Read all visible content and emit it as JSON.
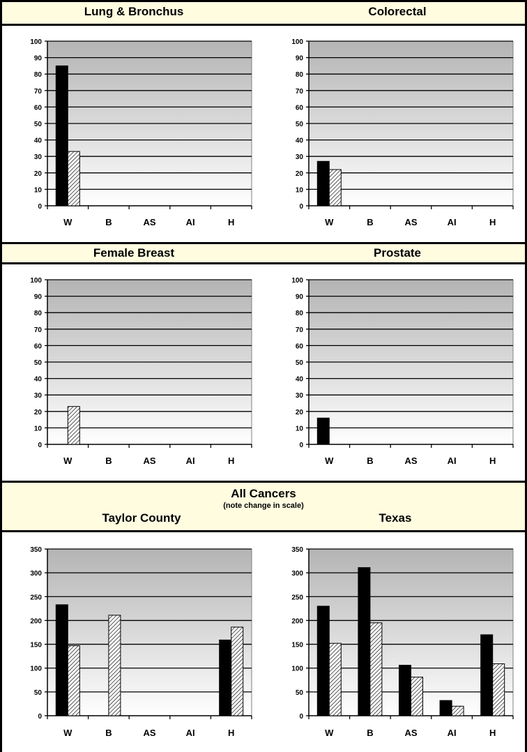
{
  "headers": {
    "row1_left": "Lung & Bronchus",
    "row1_right": "Colorectal",
    "row2_left": "Female Breast",
    "row2_right": "Prostate",
    "all_title": "All Cancers",
    "all_note": "(note change in scale)",
    "all_left": "Taylor County",
    "all_right": "Texas"
  },
  "colors": {
    "header_bg": "#fffce0",
    "series1": "#000000",
    "series2_hatch": "#ffffff",
    "plot_top": "#b4b4b4",
    "plot_bottom": "#ffffff"
  },
  "chart_data": [
    {
      "id": "lung",
      "type": "bar",
      "title": "Lung & Bronchus",
      "categories": [
        "W",
        "B",
        "AS",
        "AI",
        "H"
      ],
      "series": [
        {
          "values": [
            85,
            0,
            0,
            0,
            0
          ],
          "pattern": "solid"
        },
        {
          "values": [
            33,
            0,
            0,
            0,
            0
          ],
          "pattern": "hatch"
        }
      ],
      "ylim": [
        0,
        100
      ],
      "yticks": [
        0,
        10,
        20,
        30,
        40,
        50,
        60,
        70,
        80,
        90,
        100
      ],
      "grid": true
    },
    {
      "id": "colorectal",
      "type": "bar",
      "title": "Colorectal",
      "categories": [
        "W",
        "B",
        "AS",
        "AI",
        "H"
      ],
      "series": [
        {
          "values": [
            27,
            0,
            0,
            0,
            0
          ],
          "pattern": "solid"
        },
        {
          "values": [
            22,
            0,
            0,
            0,
            0
          ],
          "pattern": "hatch"
        }
      ],
      "ylim": [
        0,
        100
      ],
      "yticks": [
        0,
        10,
        20,
        30,
        40,
        50,
        60,
        70,
        80,
        90,
        100
      ],
      "grid": true
    },
    {
      "id": "breast",
      "type": "bar",
      "title": "Female Breast",
      "categories": [
        "W",
        "B",
        "AS",
        "AI",
        "H"
      ],
      "series": [
        {
          "values": [
            0,
            0,
            0,
            0,
            0
          ],
          "pattern": "solid"
        },
        {
          "values": [
            23,
            0,
            0,
            0,
            0
          ],
          "pattern": "hatch"
        }
      ],
      "ylim": [
        0,
        100
      ],
      "yticks": [
        0,
        10,
        20,
        30,
        40,
        50,
        60,
        70,
        80,
        90,
        100
      ],
      "grid": true
    },
    {
      "id": "prostate",
      "type": "bar",
      "title": "Prostate",
      "categories": [
        "W",
        "B",
        "AS",
        "AI",
        "H"
      ],
      "series": [
        {
          "values": [
            16,
            0,
            0,
            0,
            0
          ],
          "pattern": "solid"
        },
        {
          "values": [
            0,
            0,
            0,
            0,
            0
          ],
          "pattern": "hatch"
        }
      ],
      "ylim": [
        0,
        100
      ],
      "yticks": [
        0,
        10,
        20,
        30,
        40,
        50,
        60,
        70,
        80,
        90,
        100
      ],
      "grid": true
    },
    {
      "id": "all_taylor",
      "type": "bar",
      "title": "Taylor County",
      "categories": [
        "W",
        "B",
        "AS",
        "AI",
        "H"
      ],
      "series": [
        {
          "values": [
            233,
            0,
            0,
            0,
            159
          ],
          "pattern": "solid"
        },
        {
          "values": [
            147,
            211,
            0,
            0,
            186
          ],
          "pattern": "hatch"
        }
      ],
      "ylim": [
        0,
        350
      ],
      "yticks": [
        0,
        50,
        100,
        150,
        200,
        250,
        300,
        350
      ],
      "grid": true
    },
    {
      "id": "all_texas",
      "type": "bar",
      "title": "Texas",
      "categories": [
        "W",
        "B",
        "AS",
        "AI",
        "H"
      ],
      "series": [
        {
          "values": [
            230,
            311,
            106,
            32,
            170
          ],
          "pattern": "solid"
        },
        {
          "values": [
            152,
            195,
            81,
            20,
            109
          ],
          "pattern": "hatch"
        }
      ],
      "ylim": [
        0,
        350
      ],
      "yticks": [
        0,
        50,
        100,
        150,
        200,
        250,
        300,
        350
      ],
      "grid": true
    }
  ]
}
